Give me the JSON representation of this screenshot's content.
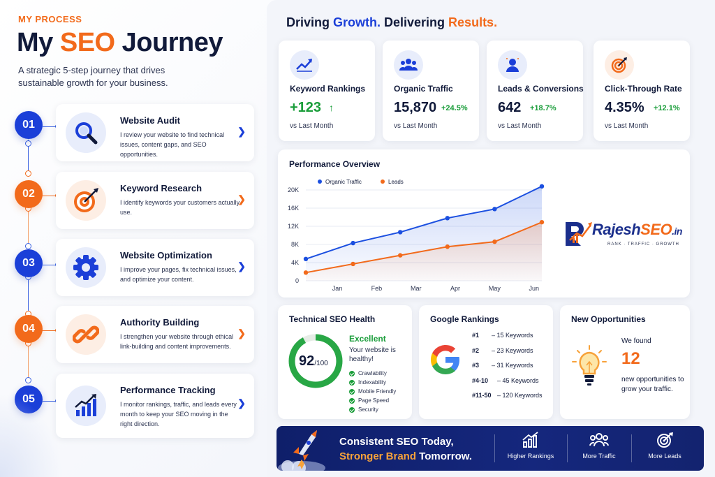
{
  "header": {
    "eyebrow": "MY PROCESS",
    "title_prefix": "My ",
    "title_accent": "SEO",
    "title_suffix": " Journey",
    "subtitle": "A strategic 5-step journey that drives sustainable growth for your business."
  },
  "steps": [
    {
      "number": "01",
      "title": "Website Audit",
      "description": "I review your website to find technical issues, content gaps, and SEO opportunities.",
      "color": "#1b3fd8",
      "icon": "magnifier-icon"
    },
    {
      "number": "02",
      "title": "Keyword Research",
      "description": "I identify keywords your customers actually use.",
      "color": "#f26a1b",
      "icon": "target-icon"
    },
    {
      "number": "03",
      "title": "Website Optimization",
      "description": "I improve your pages, fix technical issues, and optimize your content.",
      "color": "#1b3fd8",
      "icon": "gear-icon"
    },
    {
      "number": "04",
      "title": "Authority Building",
      "description": "I strengthen your website through ethical link-building and content improvements.",
      "color": "#f26a1b",
      "icon": "link-icon"
    },
    {
      "number": "05",
      "title": "Performance Tracking",
      "description": "I monitor rankings, traffic, and leads every month to keep your SEO moving in the right direction.",
      "color": "#1b3fd8",
      "icon": "growth-chart-icon"
    }
  ],
  "tagline": {
    "part1": "Driving ",
    "part2": "Growth.",
    "part3": " Delivering ",
    "part4": "Results."
  },
  "kpis": [
    {
      "label": "Keyword Rankings",
      "value": "+123",
      "change": "↑",
      "sub": "vs Last Month",
      "icon": "trend-up-icon"
    },
    {
      "label": "Organic Traffic",
      "value": "15,870",
      "change": "+24.5%",
      "sub": "vs Last Month",
      "icon": "users-icon"
    },
    {
      "label": "Leads & Conversions",
      "value": "642",
      "change": "+18.7%",
      "sub": "vs Last Month",
      "icon": "person-icon"
    },
    {
      "label": "Click-Through Rate",
      "value": "4.35%",
      "change": "+12.1%",
      "sub": "vs Last Month",
      "icon": "target-icon"
    }
  ],
  "performance": {
    "title": "Performance Overview"
  },
  "chart_data": {
    "type": "line",
    "categories": [
      "Jan",
      "Feb",
      "Mar",
      "Apr",
      "May",
      "Jun"
    ],
    "x_start_label": "",
    "ylim": [
      0,
      20000
    ],
    "yticks": [
      0,
      4000,
      8000,
      12000,
      16000,
      20000
    ],
    "ytick_labels": [
      "0",
      "4K",
      "8K",
      "12K",
      "16K",
      "20K"
    ],
    "series": [
      {
        "name": "Organic Traffic",
        "color": "#1b4fe0",
        "values": [
          4800,
          8300,
          10700,
          13800,
          15800,
          20800
        ]
      },
      {
        "name": "Leads",
        "color": "#f26a1b",
        "values": [
          1800,
          3700,
          5600,
          7500,
          8600,
          12900
        ]
      }
    ],
    "grid": true,
    "legend_position": "top-left"
  },
  "logo": {
    "text_main": "Rajesh",
    "text_accent": "SEO",
    "text_suffix": ".in",
    "tagline": "RANK · TRAFFIC · GROWTH"
  },
  "health": {
    "title": "Technical SEO Health",
    "score": "92",
    "score_max": "/100",
    "score_value": 92,
    "status": "Excellent",
    "message": "Your website is healthy!",
    "checks": [
      "Crawlability",
      "Indexability",
      "Mobile Friendly",
      "Page Speed",
      "Security"
    ]
  },
  "rankings": {
    "title": "Google Rankings",
    "rows": [
      {
        "position": "#1",
        "text": "– 15 Keywords"
      },
      {
        "position": "#2",
        "text": "– 23 Keywords"
      },
      {
        "position": "#3",
        "text": "– 31 Keywords"
      },
      {
        "position": "#4-10",
        "text": "– 45 Keywords"
      },
      {
        "position": "#11-50",
        "text": "– 120 Keywords"
      }
    ]
  },
  "opportunities": {
    "title": "New Opportunities",
    "intro": "We found",
    "count": "12",
    "detail": "new opportunities to grow your traffic."
  },
  "banner": {
    "line1": "Consistent SEO Today,",
    "line2_accent": "Stronger Brand",
    "line2_rest": " Tomorrow.",
    "features": [
      {
        "label": "Higher Rankings",
        "icon": "bar-chart-icon"
      },
      {
        "label": "More Traffic",
        "icon": "users-icon"
      },
      {
        "label": "More Leads",
        "icon": "target-icon"
      }
    ]
  }
}
